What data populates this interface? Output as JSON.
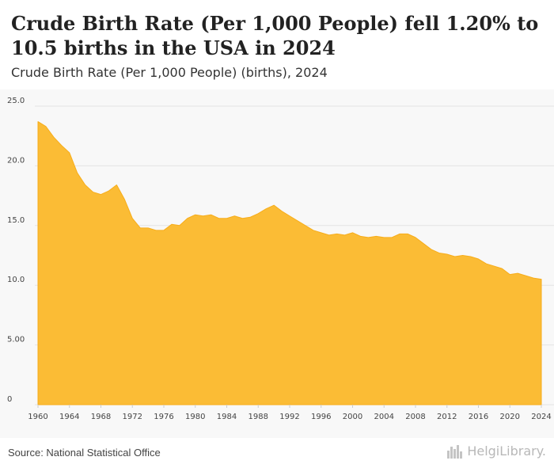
{
  "header": {
    "title": "Crude Birth Rate (Per 1,000 People) fell 1.20% to 10.5 births in the USA in 2024",
    "subtitle": "Crude Birth Rate (Per 1,000 People) (births), 2024"
  },
  "footer": {
    "source": "Source: National Statistical Office",
    "logo_text": "HelgiLibrary."
  },
  "colors": {
    "area_fill": "#fbbc35",
    "area_stroke": "#f7ad1a",
    "grid": "#e4e4e4",
    "plot_background": "#f8f8f8"
  },
  "icons": {
    "logo_icon": "city-skyline-icon"
  },
  "chart_data": {
    "type": "area",
    "title": "Crude Birth Rate (Per 1,000 People) fell 1.20% to 10.5 births in the USA in 2024",
    "subtitle": "Crude Birth Rate (Per 1,000 People) (births), 2024",
    "xlabel": "",
    "ylabel": "",
    "xlim": [
      1960,
      2024
    ],
    "ylim": [
      0,
      25
    ],
    "grid": true,
    "legend": "none",
    "y_ticks": [
      {
        "value": 0,
        "label": "0"
      },
      {
        "value": 5,
        "label": "5.00"
      },
      {
        "value": 10,
        "label": "10.0"
      },
      {
        "value": 15,
        "label": "15.0"
      },
      {
        "value": 20,
        "label": "20.0"
      },
      {
        "value": 25,
        "label": "25.0"
      }
    ],
    "x_ticks": [
      "1960",
      "1964",
      "1968",
      "1972",
      "1976",
      "1980",
      "1984",
      "1988",
      "1992",
      "1996",
      "2000",
      "2004",
      "2008",
      "2012",
      "2016",
      "2020",
      "2024"
    ],
    "x": [
      1960,
      1961,
      1962,
      1963,
      1964,
      1965,
      1966,
      1967,
      1968,
      1969,
      1970,
      1971,
      1972,
      1973,
      1974,
      1975,
      1976,
      1977,
      1978,
      1979,
      1980,
      1981,
      1982,
      1983,
      1984,
      1985,
      1986,
      1987,
      1988,
      1989,
      1990,
      1991,
      1992,
      1993,
      1994,
      1995,
      1996,
      1997,
      1998,
      1999,
      2000,
      2001,
      2002,
      2003,
      2004,
      2005,
      2006,
      2007,
      2008,
      2009,
      2010,
      2011,
      2012,
      2013,
      2014,
      2015,
      2016,
      2017,
      2018,
      2019,
      2020,
      2021,
      2022,
      2023,
      2024
    ],
    "values": [
      23.7,
      23.3,
      22.4,
      21.7,
      21.1,
      19.4,
      18.4,
      17.8,
      17.6,
      17.9,
      18.4,
      17.2,
      15.6,
      14.8,
      14.8,
      14.6,
      14.6,
      15.1,
      15.0,
      15.6,
      15.9,
      15.8,
      15.9,
      15.6,
      15.6,
      15.8,
      15.6,
      15.7,
      16.0,
      16.4,
      16.7,
      16.2,
      15.8,
      15.4,
      15.0,
      14.6,
      14.4,
      14.2,
      14.3,
      14.2,
      14.4,
      14.1,
      14.0,
      14.1,
      14.0,
      14.0,
      14.3,
      14.3,
      14.0,
      13.5,
      13.0,
      12.7,
      12.6,
      12.4,
      12.5,
      12.4,
      12.2,
      11.8,
      11.6,
      11.4,
      10.9,
      11.0,
      10.8,
      10.6,
      10.5
    ]
  }
}
